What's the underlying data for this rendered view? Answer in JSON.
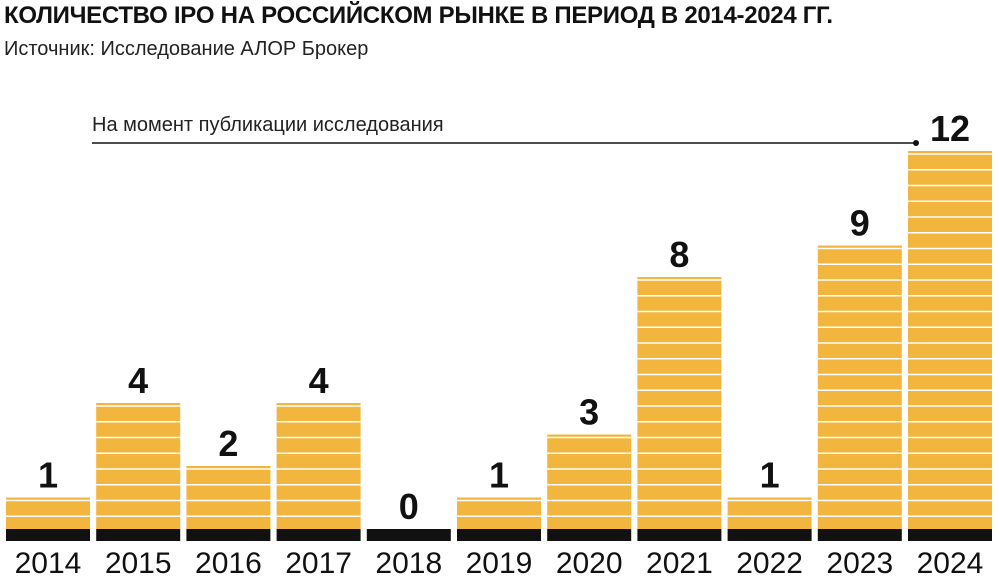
{
  "header": {
    "title": "КОЛИЧЕСТВО IPO НА РОССИЙСКОМ РЫНКЕ В ПЕРИОД В 2014-2024 ГГ.",
    "subtitle": "Источник: Исследование АЛОР Брокер"
  },
  "annotation": {
    "text": "На момент публикации исследования"
  },
  "colors": {
    "bar": "#F2B53D",
    "bar_stripe": "#FFFFFF",
    "baseline": "#111111",
    "text": "#111111"
  },
  "chart_data": {
    "type": "bar",
    "title": "КОЛИЧЕСТВО IPO НА РОССИЙСКОМ РЫНКЕ В ПЕРИОД В 2014-2024 ГГ.",
    "categories": [
      "2014",
      "2015",
      "2016",
      "2017",
      "2018",
      "2019",
      "2020",
      "2021",
      "2022",
      "2023",
      "2024"
    ],
    "values": [
      1,
      4,
      2,
      4,
      0,
      1,
      3,
      8,
      1,
      9,
      12
    ],
    "data_labels": [
      "1",
      "4",
      "2",
      "4",
      "0",
      "1",
      "3",
      "8",
      "1",
      "9",
      "12"
    ],
    "xlabel": "",
    "ylabel": "",
    "ylim": [
      0,
      12
    ],
    "grid": false,
    "legend": "none"
  }
}
